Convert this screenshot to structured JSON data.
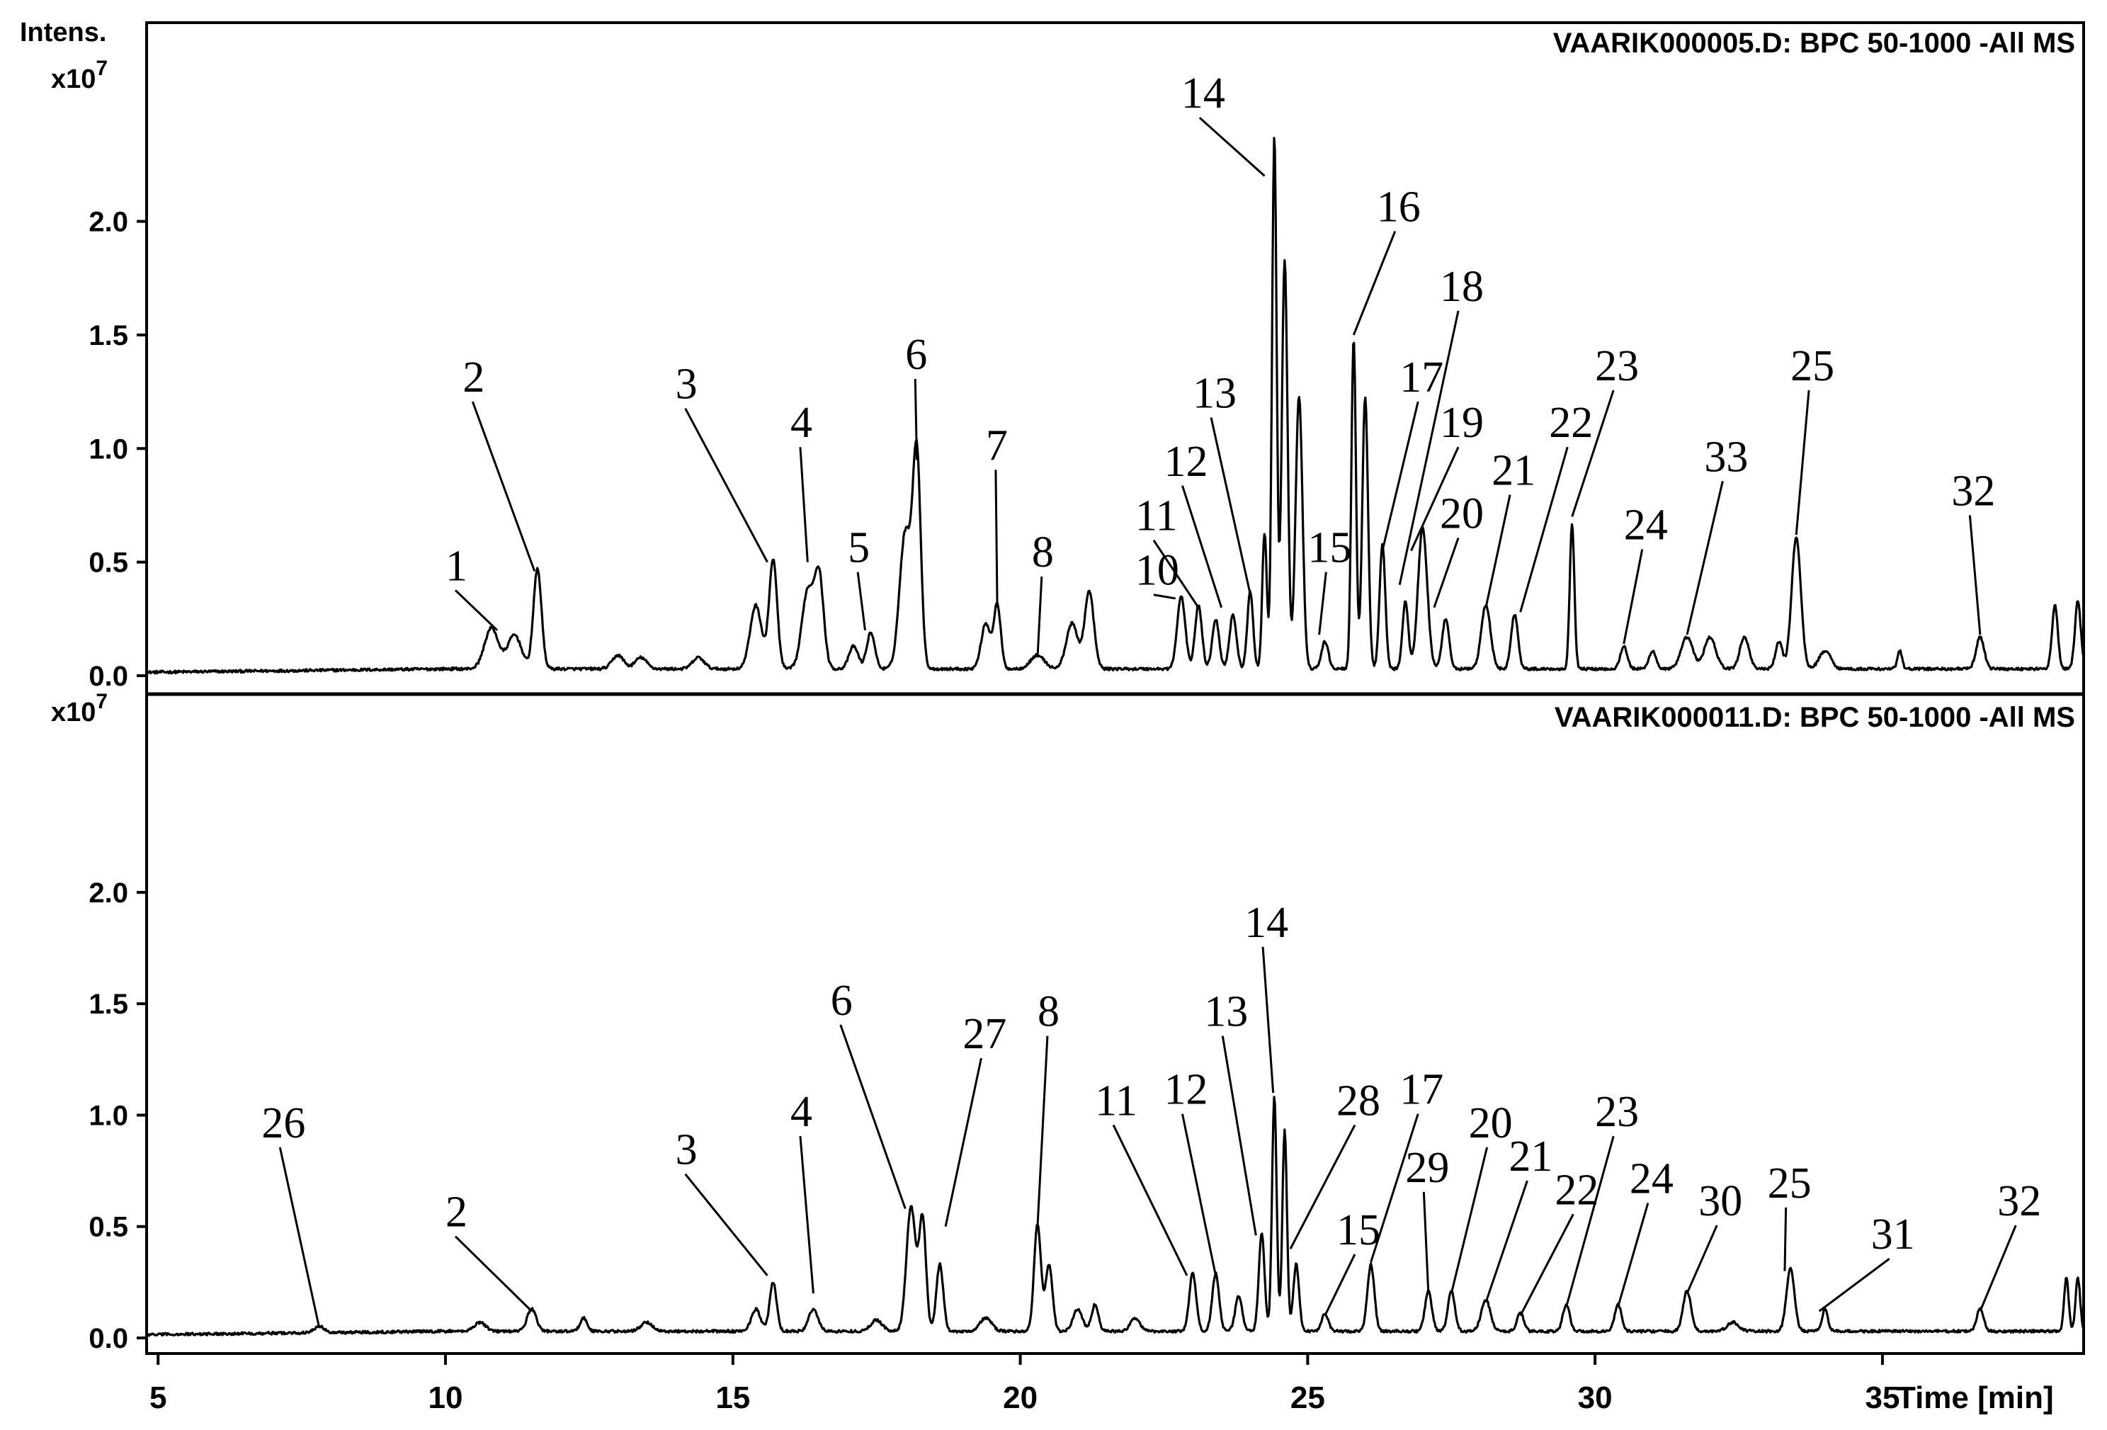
{
  "chart_data": {
    "type": "line",
    "y_unit_label_top": "Intens.",
    "y_unit_label": "x10",
    "y_unit_exponent": "7",
    "x_axis_label": "Time [min]",
    "x_ticks": [
      5,
      10,
      15,
      20,
      25,
      30,
      35
    ],
    "x_tick_labels": [
      "5",
      "10",
      "15",
      "20",
      "25",
      "30",
      "35"
    ],
    "xlim": [
      4.8,
      38.5
    ],
    "panels": [
      {
        "title": "VAARIK000005.D: BPC 50-1000 -All MS",
        "ylim": [
          0,
          2.75
        ],
        "y_ticks": [
          0.0,
          0.5,
          1.0,
          1.5,
          2.0
        ],
        "y_tick_labels": [
          "0.0",
          "0.5",
          "1.0",
          "1.5",
          "2.0"
        ],
        "baseline": 0.03,
        "peaks": [
          [
            10.8,
            0.18,
            0.12
          ],
          [
            11.2,
            0.15,
            0.12
          ],
          [
            11.6,
            0.44,
            0.07
          ],
          [
            13.0,
            0.06,
            0.1
          ],
          [
            13.4,
            0.05,
            0.1
          ],
          [
            14.4,
            0.05,
            0.1
          ],
          [
            15.4,
            0.28,
            0.1
          ],
          [
            15.7,
            0.48,
            0.07
          ],
          [
            16.3,
            0.34,
            0.1
          ],
          [
            16.5,
            0.4,
            0.08
          ],
          [
            17.1,
            0.1,
            0.08
          ],
          [
            17.4,
            0.16,
            0.07
          ],
          [
            18.0,
            0.6,
            0.1
          ],
          [
            18.2,
            0.92,
            0.07
          ],
          [
            19.4,
            0.2,
            0.08
          ],
          [
            19.6,
            0.28,
            0.06
          ],
          [
            20.3,
            0.06,
            0.12
          ],
          [
            20.9,
            0.2,
            0.1
          ],
          [
            21.2,
            0.34,
            0.08
          ],
          [
            22.8,
            0.32,
            0.07
          ],
          [
            23.1,
            0.28,
            0.06
          ],
          [
            23.4,
            0.22,
            0.06
          ],
          [
            23.7,
            0.24,
            0.06
          ],
          [
            24.0,
            0.34,
            0.05
          ],
          [
            24.25,
            0.6,
            0.04
          ],
          [
            24.42,
            2.35,
            0.04
          ],
          [
            24.6,
            1.8,
            0.05
          ],
          [
            24.85,
            1.2,
            0.06
          ],
          [
            25.3,
            0.12,
            0.06
          ],
          [
            25.8,
            1.45,
            0.04
          ],
          [
            26.0,
            1.2,
            0.05
          ],
          [
            26.3,
            0.55,
            0.05
          ],
          [
            26.7,
            0.3,
            0.05
          ],
          [
            27.0,
            0.62,
            0.08
          ],
          [
            27.4,
            0.22,
            0.06
          ],
          [
            28.1,
            0.28,
            0.08
          ],
          [
            28.6,
            0.24,
            0.06
          ],
          [
            29.6,
            0.64,
            0.04
          ],
          [
            30.5,
            0.1,
            0.06
          ],
          [
            31.0,
            0.08,
            0.06
          ],
          [
            31.6,
            0.14,
            0.1
          ],
          [
            32.0,
            0.14,
            0.1
          ],
          [
            32.6,
            0.14,
            0.08
          ],
          [
            33.2,
            0.12,
            0.06
          ],
          [
            33.5,
            0.58,
            0.08
          ],
          [
            34.0,
            0.08,
            0.1
          ],
          [
            35.3,
            0.08,
            0.04
          ],
          [
            36.7,
            0.14,
            0.07
          ],
          [
            38.0,
            0.28,
            0.05
          ],
          [
            38.4,
            0.3,
            0.05
          ]
        ],
        "annotations": [
          {
            "label": "1",
            "x": 10.9,
            "y": 0.2,
            "label_x": 10.0,
            "label_y": 0.42
          },
          {
            "label": "2",
            "x": 11.55,
            "y": 0.46,
            "label_x": 10.3,
            "label_y": 1.25
          },
          {
            "label": "3",
            "x": 15.6,
            "y": 0.5,
            "label_x": 14.0,
            "label_y": 1.22
          },
          {
            "label": "4",
            "x": 16.3,
            "y": 0.5,
            "label_x": 16.0,
            "label_y": 1.05
          },
          {
            "label": "5",
            "x": 17.3,
            "y": 0.2,
            "label_x": 17.0,
            "label_y": 0.5
          },
          {
            "label": "6",
            "x": 18.2,
            "y": 0.95,
            "label_x": 18.0,
            "label_y": 1.35
          },
          {
            "label": "7",
            "x": 19.6,
            "y": 0.3,
            "label_x": 19.4,
            "label_y": 0.95
          },
          {
            "label": "8",
            "x": 20.3,
            "y": 0.08,
            "label_x": 20.2,
            "label_y": 0.48
          },
          {
            "label": "10",
            "x": 22.7,
            "y": 0.34,
            "label_x": 22.0,
            "label_y": 0.4
          },
          {
            "label": "11",
            "x": 23.1,
            "y": 0.3,
            "label_x": 22.0,
            "label_y": 0.64
          },
          {
            "label": "12",
            "x": 23.5,
            "y": 0.3,
            "label_x": 22.5,
            "label_y": 0.88
          },
          {
            "label": "13",
            "x": 24.0,
            "y": 0.36,
            "label_x": 23.0,
            "label_y": 1.18
          },
          {
            "label": "14",
            "x": 24.25,
            "y": 2.2,
            "label_x": 22.8,
            "label_y": 2.5
          },
          {
            "label": "15",
            "x": 25.2,
            "y": 0.18,
            "label_x": 25.0,
            "label_y": 0.5
          },
          {
            "label": "16",
            "x": 25.8,
            "y": 1.5,
            "label_x": 26.2,
            "label_y": 2.0
          },
          {
            "label": "17",
            "x": 26.3,
            "y": 0.55,
            "label_x": 26.6,
            "label_y": 1.25
          },
          {
            "label": "18",
            "x": 26.6,
            "y": 0.4,
            "label_x": 27.3,
            "label_y": 1.65
          },
          {
            "label": "19",
            "x": 26.8,
            "y": 0.55,
            "label_x": 27.3,
            "label_y": 1.05
          },
          {
            "label": "20",
            "x": 27.2,
            "y": 0.3,
            "label_x": 27.3,
            "label_y": 0.65
          },
          {
            "label": "21",
            "x": 28.1,
            "y": 0.3,
            "label_x": 28.2,
            "label_y": 0.84
          },
          {
            "label": "22",
            "x": 28.7,
            "y": 0.28,
            "label_x": 29.2,
            "label_y": 1.05
          },
          {
            "label": "23",
            "x": 29.6,
            "y": 0.7,
            "label_x": 30.0,
            "label_y": 1.3
          },
          {
            "label": "24",
            "x": 30.5,
            "y": 0.14,
            "label_x": 30.5,
            "label_y": 0.6
          },
          {
            "label": "33",
            "x": 31.6,
            "y": 0.18,
            "label_x": 31.9,
            "label_y": 0.9
          },
          {
            "label": "25",
            "x": 33.5,
            "y": 0.62,
            "label_x": 33.4,
            "label_y": 1.3
          },
          {
            "label": "32",
            "x": 36.7,
            "y": 0.18,
            "label_x": 36.2,
            "label_y": 0.75
          }
        ]
      },
      {
        "title": "VAARIK000011.D: BPC 50-1000 -All MS",
        "ylim": [
          0,
          2.75
        ],
        "y_ticks": [
          0.0,
          0.5,
          1.0,
          1.5,
          2.0
        ],
        "y_tick_labels": [
          "0.0",
          "0.5",
          "1.0",
          "1.5",
          "2.0"
        ],
        "baseline": 0.03,
        "peaks": [
          [
            7.8,
            0.03,
            0.08
          ],
          [
            10.6,
            0.04,
            0.1
          ],
          [
            11.5,
            0.1,
            0.08
          ],
          [
            12.4,
            0.06,
            0.06
          ],
          [
            13.5,
            0.04,
            0.1
          ],
          [
            15.4,
            0.1,
            0.08
          ],
          [
            15.7,
            0.22,
            0.06
          ],
          [
            16.4,
            0.1,
            0.08
          ],
          [
            17.5,
            0.05,
            0.1
          ],
          [
            18.1,
            0.56,
            0.08
          ],
          [
            18.3,
            0.5,
            0.06
          ],
          [
            18.6,
            0.3,
            0.06
          ],
          [
            19.4,
            0.06,
            0.1
          ],
          [
            20.3,
            0.48,
            0.06
          ],
          [
            20.5,
            0.3,
            0.06
          ],
          [
            21.0,
            0.1,
            0.08
          ],
          [
            21.3,
            0.12,
            0.06
          ],
          [
            22.0,
            0.06,
            0.08
          ],
          [
            23.0,
            0.26,
            0.06
          ],
          [
            23.4,
            0.26,
            0.06
          ],
          [
            23.8,
            0.16,
            0.06
          ],
          [
            24.2,
            0.44,
            0.05
          ],
          [
            24.42,
            1.05,
            0.04
          ],
          [
            24.6,
            0.9,
            0.04
          ],
          [
            24.8,
            0.3,
            0.05
          ],
          [
            25.3,
            0.08,
            0.06
          ],
          [
            26.1,
            0.3,
            0.06
          ],
          [
            27.1,
            0.18,
            0.06
          ],
          [
            27.5,
            0.18,
            0.06
          ],
          [
            28.1,
            0.14,
            0.08
          ],
          [
            28.7,
            0.08,
            0.06
          ],
          [
            29.5,
            0.12,
            0.06
          ],
          [
            30.4,
            0.12,
            0.06
          ],
          [
            31.6,
            0.18,
            0.07
          ],
          [
            32.4,
            0.04,
            0.1
          ],
          [
            33.4,
            0.28,
            0.07
          ],
          [
            34.0,
            0.1,
            0.05
          ],
          [
            36.7,
            0.1,
            0.06
          ],
          [
            38.2,
            0.24,
            0.04
          ],
          [
            38.4,
            0.24,
            0.04
          ]
        ],
        "annotations": [
          {
            "label": "26",
            "x": 7.8,
            "y": 0.05,
            "label_x": 6.8,
            "label_y": 0.9
          },
          {
            "label": "2",
            "x": 11.5,
            "y": 0.12,
            "label_x": 10.0,
            "label_y": 0.5
          },
          {
            "label": "3",
            "x": 15.6,
            "y": 0.28,
            "label_x": 14.0,
            "label_y": 0.78
          },
          {
            "label": "4",
            "x": 16.4,
            "y": 0.2,
            "label_x": 16.0,
            "label_y": 0.95
          },
          {
            "label": "6",
            "x": 18.0,
            "y": 0.58,
            "label_x": 16.7,
            "label_y": 1.45
          },
          {
            "label": "27",
            "x": 18.7,
            "y": 0.5,
            "label_x": 19.0,
            "label_y": 1.3
          },
          {
            "label": "8",
            "x": 20.3,
            "y": 0.5,
            "label_x": 20.3,
            "label_y": 1.4
          },
          {
            "label": "11",
            "x": 22.9,
            "y": 0.28,
            "label_x": 21.3,
            "label_y": 1.0
          },
          {
            "label": "12",
            "x": 23.4,
            "y": 0.28,
            "label_x": 22.5,
            "label_y": 1.05
          },
          {
            "label": "13",
            "x": 24.1,
            "y": 0.46,
            "label_x": 23.2,
            "label_y": 1.4
          },
          {
            "label": "14",
            "x": 24.4,
            "y": 1.1,
            "label_x": 23.9,
            "label_y": 1.8
          },
          {
            "label": "28",
            "x": 24.7,
            "y": 0.4,
            "label_x": 25.5,
            "label_y": 1.0
          },
          {
            "label": "15",
            "x": 25.3,
            "y": 0.1,
            "label_x": 25.5,
            "label_y": 0.42
          },
          {
            "label": "17",
            "x": 26.1,
            "y": 0.34,
            "label_x": 26.6,
            "label_y": 1.05
          },
          {
            "label": "29",
            "x": 27.1,
            "y": 0.2,
            "label_x": 26.7,
            "label_y": 0.7
          },
          {
            "label": "20",
            "x": 27.5,
            "y": 0.2,
            "label_x": 27.8,
            "label_y": 0.9
          },
          {
            "label": "21",
            "x": 28.1,
            "y": 0.16,
            "label_x": 28.5,
            "label_y": 0.75
          },
          {
            "label": "22",
            "x": 28.7,
            "y": 0.1,
            "label_x": 29.3,
            "label_y": 0.6
          },
          {
            "label": "23",
            "x": 29.5,
            "y": 0.14,
            "label_x": 30.0,
            "label_y": 0.95
          },
          {
            "label": "24",
            "x": 30.4,
            "y": 0.14,
            "label_x": 30.6,
            "label_y": 0.65
          },
          {
            "label": "30",
            "x": 31.6,
            "y": 0.2,
            "label_x": 31.8,
            "label_y": 0.55
          },
          {
            "label": "25",
            "x": 33.3,
            "y": 0.3,
            "label_x": 33.0,
            "label_y": 0.63
          },
          {
            "label": "31",
            "x": 33.9,
            "y": 0.12,
            "label_x": 34.8,
            "label_y": 0.4
          },
          {
            "label": "32",
            "x": 36.7,
            "y": 0.12,
            "label_x": 37.0,
            "label_y": 0.55
          }
        ]
      }
    ]
  }
}
